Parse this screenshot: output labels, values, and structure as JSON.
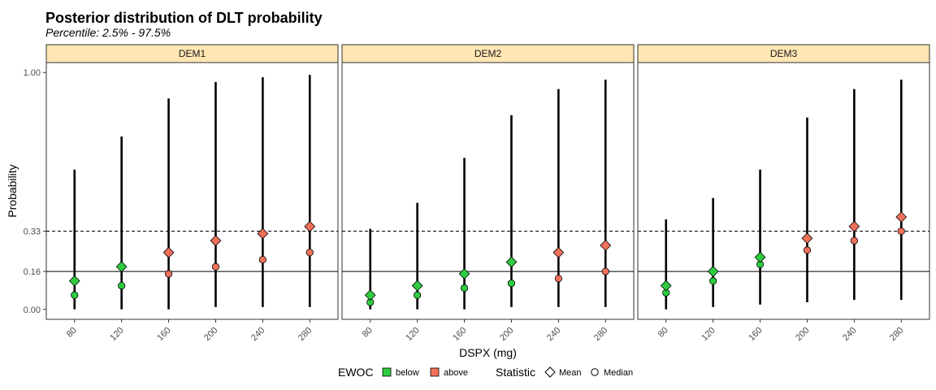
{
  "chart_data": {
    "type": "scatter",
    "title": "Posterior distribution of DLT probability",
    "subtitle": "Percentile: 2.5% - 97.5%",
    "xlabel": "DSPX (mg)",
    "ylabel": "Probability",
    "ylim": [
      0,
      1
    ],
    "yticks": [
      0.0,
      0.16,
      0.33,
      1.0
    ],
    "ytick_labels": [
      "0.00",
      "0.16",
      "0.33",
      "1.00"
    ],
    "doses": [
      "80",
      "120",
      "160",
      "200",
      "240",
      "280"
    ],
    "reference_lines": [
      {
        "y": 0.16,
        "style": "solid"
      },
      {
        "y": 0.33,
        "style": "dashed"
      }
    ],
    "strip_color": "#FFE6B3",
    "colors": {
      "below": "#2ECC40",
      "above": "#F0705A"
    },
    "legend": {
      "position": "bottom",
      "ewoc_title": "EWOC",
      "ewoc_items": [
        {
          "key": "below",
          "label": "below"
        },
        {
          "key": "above",
          "label": "above"
        }
      ],
      "stat_title": "Statistic",
      "stat_items": [
        {
          "key": "mean",
          "label": "Mean"
        },
        {
          "key": "median",
          "label": "Median"
        }
      ]
    },
    "panels": [
      {
        "name": "DEM1",
        "lower": [
          0.0,
          0.0,
          0.0,
          0.01,
          0.01,
          0.01
        ],
        "upper": [
          0.59,
          0.73,
          0.89,
          0.96,
          0.98,
          0.99
        ],
        "mean": [
          0.12,
          0.18,
          0.24,
          0.29,
          0.32,
          0.35
        ],
        "median": [
          0.06,
          0.1,
          0.15,
          0.18,
          0.21,
          0.24
        ],
        "ewoc": [
          "below",
          "below",
          "above",
          "above",
          "above",
          "above"
        ]
      },
      {
        "name": "DEM2",
        "lower": [
          0.0,
          0.0,
          0.0,
          0.01,
          0.01,
          0.01
        ],
        "upper": [
          0.34,
          0.45,
          0.64,
          0.82,
          0.93,
          0.97
        ],
        "mean": [
          0.06,
          0.1,
          0.15,
          0.2,
          0.24,
          0.27
        ],
        "median": [
          0.03,
          0.06,
          0.09,
          0.11,
          0.13,
          0.16
        ],
        "ewoc": [
          "below",
          "below",
          "below",
          "below",
          "above",
          "above"
        ]
      },
      {
        "name": "DEM3",
        "lower": [
          0.0,
          0.01,
          0.02,
          0.03,
          0.04,
          0.04
        ],
        "upper": [
          0.38,
          0.47,
          0.59,
          0.81,
          0.93,
          0.97
        ],
        "mean": [
          0.1,
          0.16,
          0.22,
          0.3,
          0.35,
          0.39
        ],
        "median": [
          0.07,
          0.12,
          0.19,
          0.25,
          0.29,
          0.33
        ],
        "ewoc": [
          "below",
          "below",
          "below",
          "above",
          "above",
          "above"
        ]
      }
    ]
  }
}
